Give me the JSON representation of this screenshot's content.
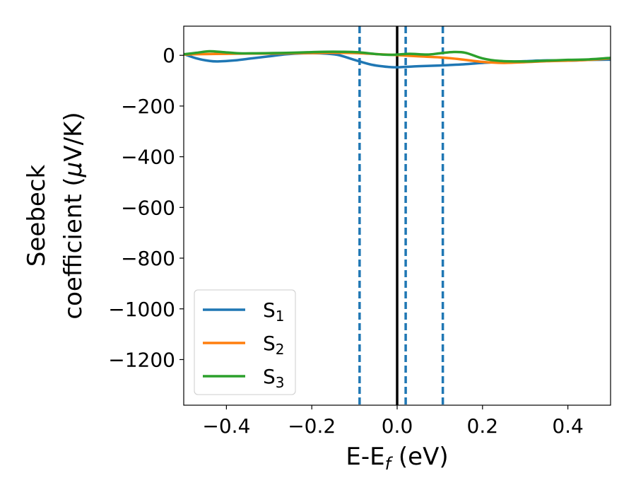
{
  "chart_data": {
    "type": "line",
    "xlabel": "E-E",
    "xlabel_sub": "f",
    "xlabel_unit": " (eV)",
    "ylabel_line1": "Seebeck",
    "ylabel_line2_prefix": "coefficient  (",
    "ylabel_mu": "μ",
    "ylabel_line2_suffix": "V/K)",
    "xlim": [
      -0.5,
      0.5
    ],
    "ylim": [
      -1380,
      115
    ],
    "xticks": [
      -0.4,
      -0.2,
      0.0,
      0.2,
      0.4
    ],
    "xtick_labels": [
      "−0.4",
      "−0.2",
      "0.0",
      "0.2",
      "0.4"
    ],
    "yticks": [
      0,
      -200,
      -400,
      -600,
      -800,
      -1000,
      -1200
    ],
    "ytick_labels": [
      "0",
      "−200",
      "−400",
      "−600",
      "−800",
      "−1000",
      "−1200"
    ],
    "grid": false,
    "legend_position": "lower-left",
    "fermi_line": {
      "x": 0.0,
      "color": "#000000"
    },
    "vlines_dashed": [
      {
        "x": -0.088,
        "color": "#1f77b4"
      },
      {
        "x": 0.02,
        "color": "#1f77b4"
      },
      {
        "x": 0.107,
        "color": "#1f77b4"
      }
    ],
    "series": [
      {
        "name_main": "S",
        "name_sub": "1",
        "color": "#1f77b4",
        "x": [
          -0.5,
          -0.47,
          -0.44,
          -0.42,
          -0.38,
          -0.34,
          -0.3,
          -0.26,
          -0.22,
          -0.18,
          -0.14,
          -0.1,
          -0.06,
          -0.02,
          0.0,
          0.05,
          0.1,
          0.15,
          0.2,
          0.25,
          0.3,
          0.35,
          0.4,
          0.45,
          0.5
        ],
        "y": [
          5,
          -12,
          -22,
          -24,
          -20,
          -12,
          -4,
          4,
          8,
          8,
          2,
          -18,
          -37,
          -46,
          -47,
          -43,
          -40,
          -36,
          -30,
          -26,
          -23,
          -20,
          -21,
          -18,
          -17
        ]
      },
      {
        "name_main": "S",
        "name_sub": "2",
        "color": "#ff7f0e",
        "x": [
          -0.5,
          -0.45,
          -0.4,
          -0.35,
          -0.3,
          -0.25,
          -0.2,
          -0.15,
          -0.1,
          -0.05,
          0.0,
          0.05,
          0.1,
          0.15,
          0.2,
          0.25,
          0.3,
          0.35,
          0.4,
          0.45,
          0.5
        ],
        "y": [
          3,
          5,
          6,
          7,
          7,
          8,
          9,
          10,
          9,
          5,
          1,
          -4,
          -8,
          -16,
          -26,
          -30,
          -27,
          -23,
          -21,
          -18,
          -12
        ]
      },
      {
        "name_main": "S",
        "name_sub": "3",
        "color": "#2ca02c",
        "x": [
          -0.5,
          -0.47,
          -0.44,
          -0.41,
          -0.37,
          -0.33,
          -0.29,
          -0.25,
          -0.21,
          -0.17,
          -0.13,
          -0.09,
          -0.05,
          -0.02,
          0.0,
          0.03,
          0.07,
          0.1,
          0.13,
          0.16,
          0.2,
          0.24,
          0.3,
          0.35,
          0.4,
          0.45,
          0.5
        ],
        "y": [
          4,
          10,
          16,
          13,
          8,
          8,
          9,
          10,
          12,
          14,
          14,
          12,
          5,
          2,
          3,
          6,
          3,
          8,
          13,
          10,
          -12,
          -22,
          -24,
          -21,
          -18,
          -16,
          -10
        ]
      }
    ]
  }
}
